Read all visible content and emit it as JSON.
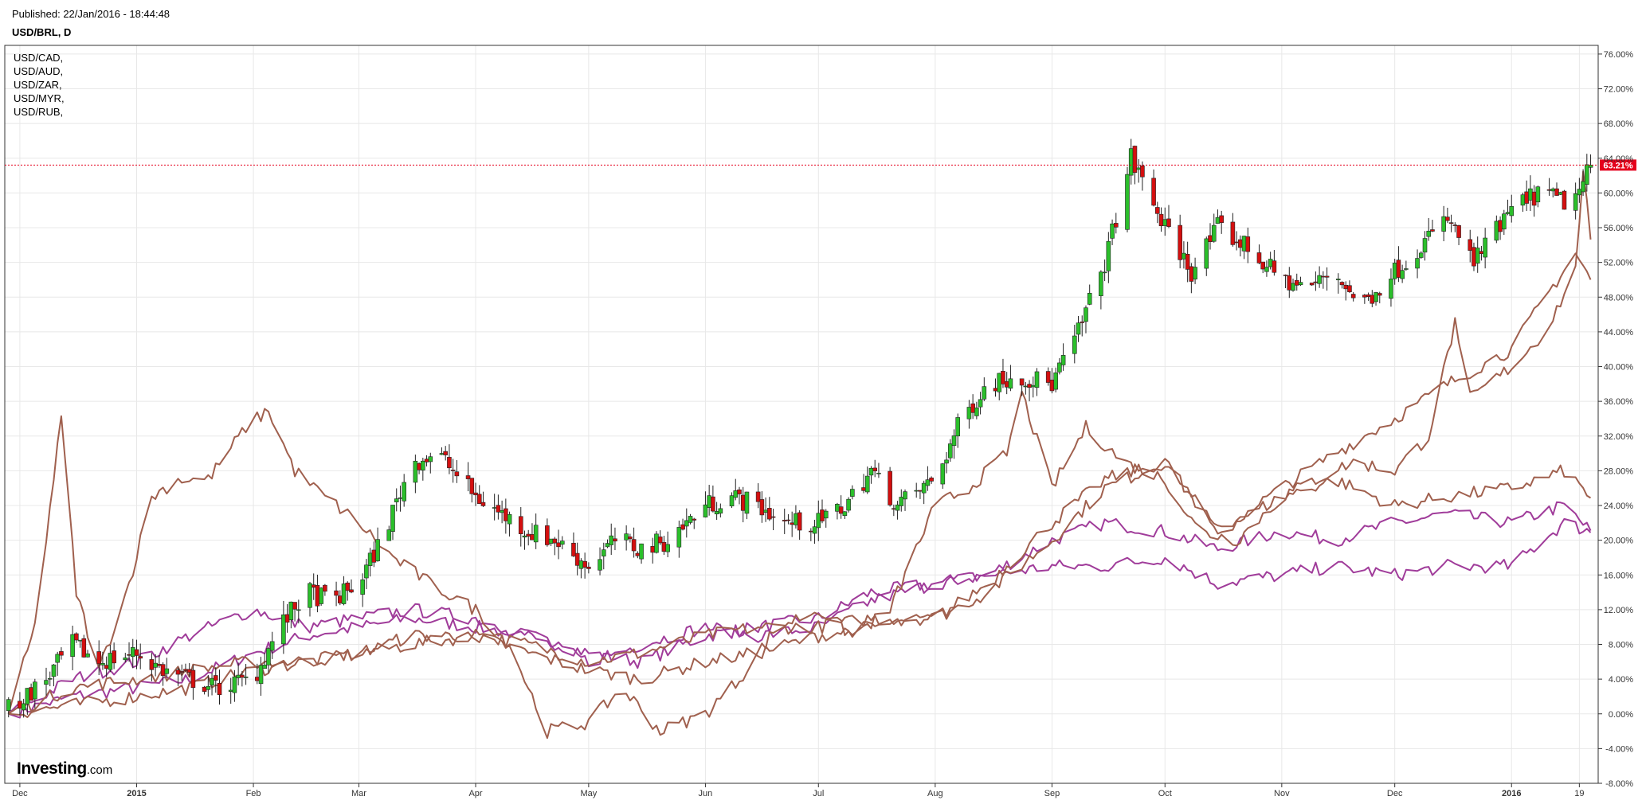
{
  "header": {
    "published": "Published: 22/Jan/2016 - 18:44:48",
    "symbol": "USD/BRL, D"
  },
  "legend": [
    "USD/CAD,",
    "USD/AUD,",
    "USD/ZAR,",
    "USD/MYR,",
    "USD/RUB,"
  ],
  "brand": {
    "name": "Investing",
    "suffix": ".com"
  },
  "colors": {
    "up": "#2bbf2b",
    "down": "#d40f0f",
    "brown": "#a0604e",
    "purple": "#a03c9a",
    "last_price": "#e5001c",
    "grid": "#e8e8e8",
    "frame": "#333333"
  },
  "chart_data": {
    "type": "line",
    "main_series_style": "candlestick",
    "x": [
      "2014-11-28",
      "2015-01-01",
      "2015-02-01",
      "2015-03-01",
      "2015-04-01",
      "2015-05-01",
      "2015-06-01",
      "2015-07-01",
      "2015-08-01",
      "2015-09-01",
      "2015-10-01",
      "2015-11-01",
      "2015-12-01",
      "2016-01-01",
      "2016-01-19",
      "2016-01-22"
    ],
    "x_tick_labels": [
      {
        "date": "2014-12-01",
        "label": "Dec",
        "bold": false
      },
      {
        "date": "2015-01-01",
        "label": "2015",
        "bold": true
      },
      {
        "date": "2015-02-01",
        "label": "Feb",
        "bold": false
      },
      {
        "date": "2015-03-01",
        "label": "Mar",
        "bold": false
      },
      {
        "date": "2015-04-01",
        "label": "Apr",
        "bold": false
      },
      {
        "date": "2015-05-01",
        "label": "May",
        "bold": false
      },
      {
        "date": "2015-06-01",
        "label": "Jun",
        "bold": false
      },
      {
        "date": "2015-07-01",
        "label": "Jul",
        "bold": false
      },
      {
        "date": "2015-08-01",
        "label": "Aug",
        "bold": false
      },
      {
        "date": "2015-09-01",
        "label": "Sep",
        "bold": false
      },
      {
        "date": "2015-10-01",
        "label": "Oct",
        "bold": false
      },
      {
        "date": "2015-11-01",
        "label": "Nov",
        "bold": false
      },
      {
        "date": "2015-12-01",
        "label": "Dec",
        "bold": false
      },
      {
        "date": "2016-01-01",
        "label": "2016",
        "bold": true
      },
      {
        "date": "2016-01-19",
        "label": "19",
        "bold": false
      }
    ],
    "y_ticks": [
      "76.00%",
      "72.00%",
      "68.00%",
      "64.00%",
      "60.00%",
      "56.00%",
      "52.00%",
      "48.00%",
      "44.00%",
      "40.00%",
      "36.00%",
      "32.00%",
      "28.00%",
      "24.00%",
      "20.00%",
      "16.00%",
      "12.00%",
      "8.00%",
      "4.00%",
      "0.00%",
      "-4.00%",
      "-8.00%"
    ],
    "ylim": [
      -8,
      77
    ],
    "y_unit": "percent change",
    "last_value_label": "63.21%",
    "last_value": 63.21,
    "grid": true,
    "legend_position": "top-left",
    "series": [
      {
        "name": "USD/BRL, D",
        "color": "candles",
        "x": [
          "2014-11-28",
          "2014-12-01",
          "2014-12-08",
          "2014-12-15",
          "2014-12-22",
          "2015-01-01",
          "2015-01-08",
          "2015-01-15",
          "2015-01-22",
          "2015-02-01",
          "2015-02-08",
          "2015-02-15",
          "2015-02-22",
          "2015-03-01",
          "2015-03-08",
          "2015-03-15",
          "2015-03-22",
          "2015-04-01",
          "2015-04-08",
          "2015-04-15",
          "2015-04-22",
          "2015-05-01",
          "2015-05-08",
          "2015-05-15",
          "2015-05-22",
          "2015-06-01",
          "2015-06-08",
          "2015-06-15",
          "2015-06-22",
          "2015-07-01",
          "2015-07-08",
          "2015-07-15",
          "2015-07-22",
          "2015-08-01",
          "2015-08-08",
          "2015-08-15",
          "2015-08-22",
          "2015-09-01",
          "2015-09-08",
          "2015-09-15",
          "2015-09-22",
          "2015-10-01",
          "2015-10-08",
          "2015-10-15",
          "2015-10-22",
          "2015-11-01",
          "2015-11-08",
          "2015-11-15",
          "2015-11-22",
          "2015-12-01",
          "2015-12-08",
          "2015-12-15",
          "2015-12-22",
          "2016-01-01",
          "2016-01-08",
          "2016-01-15",
          "2016-01-19",
          "2016-01-22"
        ],
        "values": [
          0.5,
          1.5,
          4,
          8,
          6,
          7,
          5,
          4,
          3,
          4,
          10,
          14,
          13,
          15,
          21,
          29,
          30,
          25,
          23,
          21,
          20,
          17,
          20,
          19,
          20,
          24,
          25,
          24,
          22,
          22,
          24,
          28,
          24,
          27,
          34,
          38,
          39,
          38,
          44,
          52,
          64,
          56,
          51,
          56,
          54,
          50,
          49,
          51,
          47,
          51,
          54,
          57,
          52,
          58,
          60,
          59,
          60,
          63.21
        ]
      },
      {
        "name": "USD/CAD,",
        "color": "#a03c9a",
        "x": [
          "2014-11-28",
          "2014-12-15",
          "2015-01-01",
          "2015-01-15",
          "2015-02-01",
          "2015-02-15",
          "2015-03-01",
          "2015-03-15",
          "2015-04-01",
          "2015-04-15",
          "2015-05-01",
          "2015-05-15",
          "2015-06-01",
          "2015-06-15",
          "2015-07-01",
          "2015-07-15",
          "2015-08-01",
          "2015-08-15",
          "2015-09-01",
          "2015-09-15",
          "2015-10-01",
          "2015-10-15",
          "2015-11-01",
          "2015-11-15",
          "2015-12-01",
          "2015-12-15",
          "2016-01-01",
          "2016-01-15",
          "2016-01-22"
        ],
        "values": [
          0,
          2,
          3,
          4,
          7,
          9,
          10,
          11,
          10,
          9,
          7,
          6,
          9,
          10,
          11,
          14,
          15,
          16,
          20,
          22,
          21,
          19,
          21,
          20,
          22,
          23,
          22,
          24,
          21
        ]
      },
      {
        "name": "USD/AUD,",
        "color": "#a03c9a",
        "x": [
          "2014-11-28",
          "2014-12-15",
          "2015-01-01",
          "2015-01-15",
          "2015-02-01",
          "2015-02-15",
          "2015-03-01",
          "2015-03-15",
          "2015-04-01",
          "2015-04-15",
          "2015-05-01",
          "2015-05-15",
          "2015-06-01",
          "2015-06-15",
          "2015-07-01",
          "2015-07-15",
          "2015-08-01",
          "2015-08-15",
          "2015-09-01",
          "2015-09-15",
          "2015-10-01",
          "2015-10-15",
          "2015-11-01",
          "2015-11-15",
          "2015-12-01",
          "2015-12-15",
          "2016-01-01",
          "2016-01-15",
          "2016-01-22"
        ],
        "values": [
          0,
          4,
          6,
          9,
          12,
          10,
          11,
          12,
          11,
          9,
          6,
          8,
          10,
          9,
          10,
          13,
          15,
          16,
          17,
          17,
          18,
          15,
          16,
          17,
          16,
          17,
          17,
          22,
          21
        ]
      },
      {
        "name": "USD/ZAR,",
        "color": "#a0604e",
        "x": [
          "2014-11-28",
          "2014-12-15",
          "2015-01-01",
          "2015-01-15",
          "2015-02-01",
          "2015-02-15",
          "2015-03-01",
          "2015-03-15",
          "2015-04-01",
          "2015-04-15",
          "2015-05-01",
          "2015-05-15",
          "2015-06-01",
          "2015-06-15",
          "2015-07-01",
          "2015-07-15",
          "2015-08-01",
          "2015-08-15",
          "2015-09-01",
          "2015-09-15",
          "2015-10-01",
          "2015-10-15",
          "2015-11-01",
          "2015-11-15",
          "2015-12-01",
          "2015-12-15",
          "2016-01-01",
          "2016-01-10",
          "2016-01-18",
          "2016-01-22"
        ],
        "values": [
          0,
          1,
          2,
          3,
          5,
          6,
          7,
          8,
          9,
          8,
          6,
          7,
          9,
          10,
          10,
          11,
          11,
          14,
          20,
          26,
          29,
          21,
          26,
          30,
          34,
          38,
          42,
          48,
          53,
          50
        ]
      },
      {
        "name": "USD/MYR,",
        "color": "#a0604e",
        "x": [
          "2014-11-28",
          "2014-12-15",
          "2015-01-01",
          "2015-01-15",
          "2015-02-01",
          "2015-02-15",
          "2015-03-01",
          "2015-03-15",
          "2015-04-01",
          "2015-04-15",
          "2015-05-01",
          "2015-05-15",
          "2015-06-01",
          "2015-06-15",
          "2015-07-01",
          "2015-07-15",
          "2015-08-01",
          "2015-08-15",
          "2015-09-01",
          "2015-09-15",
          "2015-10-01",
          "2015-10-15",
          "2015-11-01",
          "2015-11-15",
          "2015-12-01",
          "2015-12-15",
          "2016-01-01",
          "2016-01-15",
          "2016-01-22"
        ],
        "values": [
          0,
          3,
          4,
          5,
          6,
          6,
          7,
          9,
          9,
          7,
          5,
          4,
          6,
          7,
          9,
          10,
          11,
          15,
          22,
          27,
          29,
          21,
          25,
          27,
          24,
          25,
          26,
          28,
          25
        ]
      },
      {
        "name": "USD/RUB,",
        "color": "#a0604e",
        "x": [
          "2014-11-28",
          "2014-12-05",
          "2014-12-12",
          "2014-12-16",
          "2014-12-22",
          "2014-12-30",
          "2015-01-05",
          "2015-01-12",
          "2015-01-20",
          "2015-01-30",
          "2015-02-05",
          "2015-02-12",
          "2015-02-20",
          "2015-03-01",
          "2015-03-10",
          "2015-03-20",
          "2015-04-01",
          "2015-04-10",
          "2015-04-20",
          "2015-05-01",
          "2015-05-10",
          "2015-05-20",
          "2015-06-01",
          "2015-06-10",
          "2015-06-20",
          "2015-07-01",
          "2015-07-10",
          "2015-07-20",
          "2015-08-01",
          "2015-08-10",
          "2015-08-20",
          "2015-08-24",
          "2015-09-01",
          "2015-09-10",
          "2015-09-20",
          "2015-10-01",
          "2015-10-10",
          "2015-10-20",
          "2015-11-01",
          "2015-11-10",
          "2015-11-20",
          "2015-12-01",
          "2015-12-10",
          "2015-12-17",
          "2015-12-20",
          "2016-01-01",
          "2016-01-10",
          "2016-01-18",
          "2016-01-20",
          "2016-01-22"
        ],
        "values": [
          0,
          10,
          34,
          14,
          5,
          15,
          25,
          27,
          27,
          33,
          35,
          28,
          25,
          22,
          18,
          15,
          12,
          8,
          -2,
          -1,
          3,
          -2,
          0,
          4,
          10,
          12,
          9,
          12,
          24,
          26,
          30,
          37,
          26,
          33,
          29,
          27,
          21,
          20,
          25,
          27,
          29,
          28,
          32,
          45,
          36,
          40,
          44,
          51,
          63,
          54
        ]
      }
    ]
  }
}
